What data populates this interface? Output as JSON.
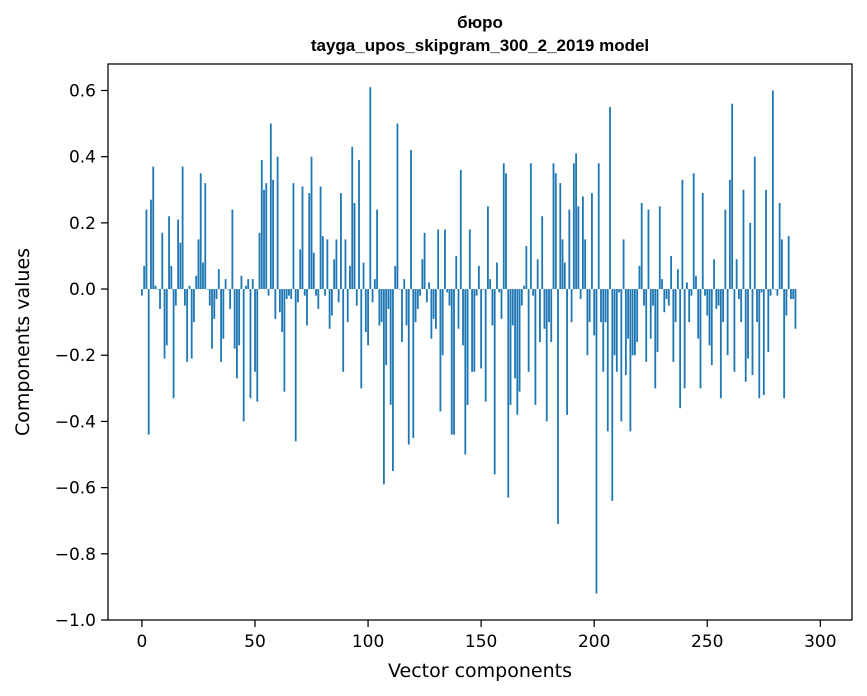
{
  "chart_data": {
    "type": "bar",
    "title": "бюро",
    "subtitle": "tayga_upos_skipgram_300_2_2019 model",
    "xlabel": "Vector components",
    "ylabel": "Components values",
    "xlim": [
      -15,
      314
    ],
    "ylim": [
      -1.0,
      0.68
    ],
    "xticks": [
      0,
      50,
      100,
      150,
      200,
      250,
      300
    ],
    "yticks": [
      -1.0,
      -0.8,
      -0.6,
      -0.4,
      -0.2,
      0.0,
      0.2,
      0.4,
      0.6
    ],
    "ytick_labels": [
      "−1.0",
      "−0.8",
      "−0.6",
      "−0.4",
      "−0.2",
      "0.0",
      "0.2",
      "0.4",
      "0.6"
    ],
    "grid": false,
    "legend": "none",
    "bar_color": "#1f77b4",
    "x_start": 0,
    "values": [
      -0.02,
      0.07,
      0.24,
      -0.44,
      0.27,
      0.37,
      0.01,
      0.0,
      -0.06,
      0.17,
      -0.21,
      -0.17,
      0.22,
      0.07,
      -0.33,
      -0.05,
      0.21,
      0.14,
      0.37,
      -0.05,
      -0.22,
      0.01,
      -0.21,
      -0.1,
      0.04,
      0.15,
      0.35,
      0.08,
      0.32,
      0.0,
      -0.05,
      -0.18,
      -0.09,
      -0.03,
      0.06,
      -0.22,
      -0.15,
      0.03,
      0.0,
      -0.06,
      0.24,
      -0.18,
      -0.27,
      -0.17,
      0.04,
      -0.4,
      0.01,
      0.03,
      -0.33,
      0.03,
      -0.25,
      -0.34,
      0.17,
      0.39,
      0.3,
      0.32,
      -0.02,
      0.5,
      0.33,
      -0.09,
      0.4,
      -0.07,
      -0.13,
      -0.31,
      -0.03,
      -0.02,
      -0.03,
      0.32,
      -0.46,
      -0.04,
      0.12,
      0.31,
      -0.02,
      -0.11,
      0.29,
      0.4,
      0.11,
      -0.02,
      -0.06,
      0.31,
      0.16,
      -0.02,
      0.15,
      -0.12,
      -0.08,
      0.09,
      0.15,
      -0.04,
      0.29,
      -0.25,
      0.15,
      -0.1,
      0.07,
      0.43,
      0.26,
      -0.05,
      0.39,
      -0.3,
      0.08,
      -0.13,
      -0.17,
      0.61,
      -0.04,
      0.03,
      0.24,
      -0.11,
      -0.1,
      -0.59,
      -0.23,
      -0.06,
      -0.35,
      -0.55,
      0.07,
      0.5,
      0.0,
      -0.16,
      0.03,
      -0.11,
      -0.47,
      0.42,
      -0.45,
      -0.1,
      -0.06,
      -0.02,
      0.09,
      0.17,
      -0.04,
      0.02,
      -0.15,
      -0.09,
      -0.12,
      0.18,
      -0.37,
      -0.2,
      0.18,
      -0.01,
      -0.05,
      -0.44,
      -0.44,
      0.1,
      -0.12,
      0.36,
      -0.17,
      -0.5,
      -0.35,
      0.18,
      -0.25,
      -0.25,
      -0.02,
      0.07,
      -0.24,
      0.0,
      -0.34,
      0.25,
      0.03,
      -0.11,
      -0.56,
      0.08,
      -0.01,
      -0.09,
      0.38,
      0.35,
      -0.63,
      -0.35,
      -0.11,
      -0.27,
      -0.38,
      -0.31,
      -0.05,
      0.01,
      0.13,
      -0.25,
      0.38,
      -0.02,
      -0.35,
      0.09,
      -0.16,
      0.22,
      -0.12,
      -0.4,
      -0.1,
      -0.16,
      0.38,
      0.35,
      -0.71,
      0.32,
      0.15,
      0.08,
      -0.38,
      0.24,
      -0.1,
      0.38,
      0.41,
      0.25,
      -0.03,
      0.28,
      0.15,
      -0.2,
      -0.1,
      0.29,
      -0.14,
      -0.92,
      0.38,
      -0.1,
      -0.25,
      -0.1,
      -0.43,
      0.55,
      -0.64,
      -0.2,
      -0.25,
      -0.01,
      -0.4,
      0.15,
      -0.26,
      -0.15,
      -0.43,
      -0.2,
      -0.2,
      -0.16,
      0.07,
      0.26,
      -0.05,
      -0.22,
      0.24,
      -0.15,
      -0.05,
      -0.3,
      -0.19,
      0.25,
      0.03,
      -0.07,
      -0.03,
      -0.05,
      0.1,
      -0.22,
      -0.1,
      0.06,
      -0.36,
      0.33,
      -0.3,
      0.02,
      -0.1,
      -0.02,
      0.35,
      0.04,
      -0.15,
      -0.3,
      0.29,
      -0.02,
      -0.08,
      -0.17,
      -0.23,
      0.09,
      -0.06,
      -0.05,
      -0.33,
      -0.1,
      0.24,
      -0.2,
      0.33,
      0.56,
      -0.25,
      0.09,
      -0.03,
      -0.1,
      0.3,
      -0.28,
      -0.21,
      0.2,
      -0.26,
      0.4,
      -0.1,
      -0.33,
      -0.01,
      -0.32,
      0.3,
      -0.19,
      -0.02,
      0.6,
      0.0,
      -0.02,
      0.26,
      0.15,
      -0.33,
      -0.08,
      0.16,
      -0.03,
      -0.03,
      -0.12
    ]
  }
}
